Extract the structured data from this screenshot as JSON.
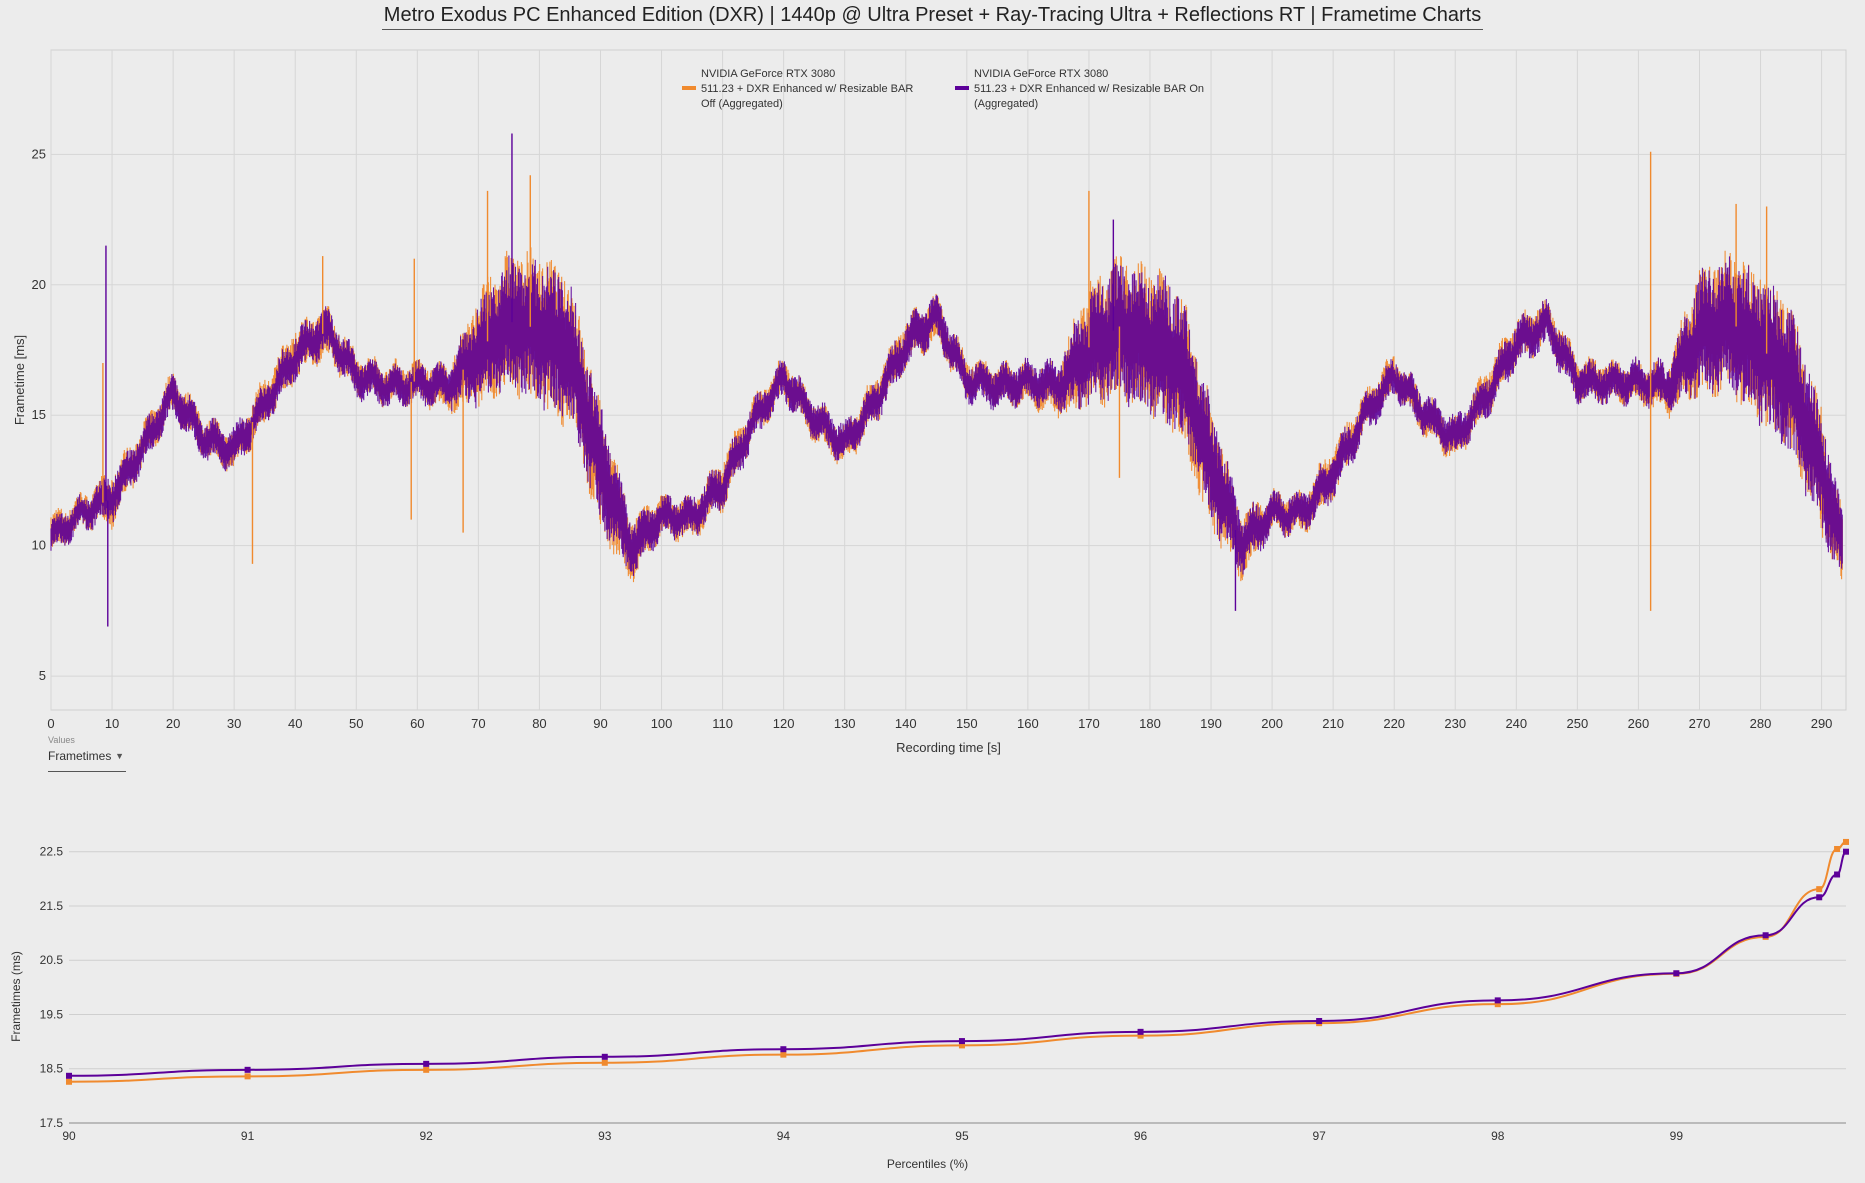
{
  "title": "Metro Exodus PC Enhanced Edition (DXR) | 1440p @ Ultra Preset + Ray-Tracing Ultra + Reflections RT | Frametime Charts",
  "colors": {
    "series_off": "#f08a2e",
    "series_on": "#5c0099",
    "grid": "#d6d6d6",
    "background": "#ececec"
  },
  "values_selector": {
    "caption": "Values",
    "selected": "Frametimes"
  },
  "chart_data": [
    {
      "type": "line",
      "title": "",
      "xlabel": "Recording time [s]",
      "ylabel": "Frametime [ms]",
      "xlim": [
        0,
        294
      ],
      "ylim": [
        3.7,
        29
      ],
      "x_ticks": [
        0,
        10,
        20,
        30,
        40,
        50,
        60,
        70,
        80,
        90,
        100,
        110,
        120,
        130,
        140,
        150,
        160,
        170,
        180,
        190,
        200,
        210,
        220,
        230,
        240,
        250,
        260,
        270,
        280,
        290
      ],
      "y_ticks": [
        5,
        10,
        15,
        20,
        25
      ],
      "grid": true,
      "legend_position": "top-center",
      "legend": [
        {
          "series": "off",
          "lines": [
            "NVIDIA GeForce RTX 3080",
            "511.23 + DXR Enhanced w/ Resizable BAR",
            "Off (Aggregated)"
          ]
        },
        {
          "series": "on",
          "lines": [
            "NVIDIA GeForce RTX 3080",
            "511.23 + DXR Enhanced w/ Resizable BAR On",
            "(Aggregated)"
          ]
        }
      ],
      "series": [
        {
          "name": "NVIDIA GeForce RTX 3080 511.23 + DXR Enhanced w/ Resizable BAR Off (Aggregated)",
          "key": "off",
          "x": [
            0,
            5,
            10,
            15,
            20,
            25,
            30,
            35,
            40,
            45,
            50,
            55,
            60,
            65,
            70,
            75,
            80,
            85,
            90,
            95,
            100,
            105,
            110,
            115,
            120,
            125,
            130,
            135,
            140,
            145,
            150,
            155,
            160,
            165,
            170,
            175,
            180,
            185,
            190,
            195,
            200,
            205,
            210,
            215,
            220,
            225,
            230,
            235,
            240,
            245,
            250,
            255,
            260,
            265,
            270,
            275,
            280,
            285,
            290,
            294
          ],
          "mean": [
            10.4,
            11.3,
            11.8,
            13.8,
            15.9,
            14.2,
            13.6,
            15.5,
            17.4,
            18.2,
            16.6,
            16.2,
            16.3,
            16.0,
            17.5,
            18.6,
            18.3,
            17.4,
            13.0,
            9.8,
            11.2,
            11.0,
            12.4,
            14.8,
            16.5,
            14.8,
            13.8,
            15.6,
            17.8,
            18.7,
            16.4,
            16.2,
            16.2,
            16.0,
            17.6,
            18.4,
            17.9,
            17.0,
            13.0,
            10.0,
            11.3,
            11.2,
            12.8,
            15.0,
            16.6,
            15.0,
            14.0,
            15.8,
            17.8,
            18.6,
            16.4,
            16.3,
            16.2,
            16.0,
            18.2,
            18.6,
            17.6,
            16.4,
            12.8,
            9.2
          ],
          "spread": [
            0.6,
            0.5,
            0.8,
            0.6,
            0.6,
            0.6,
            0.6,
            0.7,
            0.8,
            0.8,
            0.6,
            0.6,
            0.6,
            0.7,
            1.8,
            2.2,
            2.4,
            2.4,
            2.0,
            1.0,
            0.6,
            0.6,
            0.8,
            0.6,
            0.6,
            0.6,
            0.6,
            0.7,
            0.7,
            0.7,
            0.6,
            0.6,
            0.6,
            0.8,
            2.0,
            2.2,
            2.4,
            2.4,
            2.0,
            1.0,
            0.6,
            0.6,
            0.8,
            0.6,
            0.6,
            0.6,
            0.6,
            0.7,
            0.7,
            0.7,
            0.6,
            0.6,
            0.6,
            0.8,
            2.0,
            2.2,
            2.4,
            2.4,
            2.0,
            1.0
          ]
        },
        {
          "name": "NVIDIA GeForce RTX 3080 511.23 + DXR Enhanced w/ Resizable BAR On (Aggregated)",
          "key": "on",
          "x": [
            0,
            5,
            10,
            15,
            20,
            25,
            30,
            35,
            40,
            45,
            50,
            55,
            60,
            65,
            70,
            75,
            80,
            85,
            90,
            95,
            100,
            105,
            110,
            115,
            120,
            125,
            130,
            135,
            140,
            145,
            150,
            155,
            160,
            165,
            170,
            175,
            180,
            185,
            190,
            195,
            200,
            205,
            210,
            215,
            220,
            225,
            230,
            235,
            240,
            245,
            250,
            255,
            260,
            265,
            270,
            275,
            280,
            285,
            290,
            294
          ],
          "mean": [
            10.3,
            11.2,
            11.9,
            13.7,
            15.8,
            14.1,
            13.7,
            15.4,
            17.3,
            18.3,
            16.5,
            16.1,
            16.2,
            16.1,
            17.4,
            18.5,
            18.2,
            17.3,
            13.1,
            9.9,
            11.1,
            11.1,
            12.3,
            14.7,
            16.4,
            14.9,
            13.9,
            15.5,
            17.7,
            18.8,
            16.3,
            16.1,
            16.3,
            16.1,
            17.5,
            18.3,
            17.8,
            17.1,
            13.1,
            10.1,
            11.2,
            11.3,
            12.7,
            14.9,
            16.5,
            15.1,
            14.1,
            15.7,
            17.7,
            18.5,
            16.3,
            16.2,
            16.3,
            16.1,
            18.1,
            18.5,
            17.5,
            16.3,
            12.9,
            9.3
          ],
          "spread": [
            0.5,
            0.5,
            0.7,
            0.6,
            0.6,
            0.6,
            0.6,
            0.6,
            0.7,
            0.7,
            0.6,
            0.6,
            0.6,
            0.6,
            1.6,
            2.0,
            2.3,
            2.3,
            1.9,
            0.9,
            0.6,
            0.6,
            0.7,
            0.6,
            0.6,
            0.6,
            0.6,
            0.6,
            0.7,
            0.7,
            0.6,
            0.6,
            0.6,
            0.7,
            1.8,
            2.1,
            2.3,
            2.3,
            1.9,
            0.9,
            0.6,
            0.6,
            0.7,
            0.6,
            0.6,
            0.6,
            0.6,
            0.6,
            0.7,
            0.7,
            0.6,
            0.6,
            0.6,
            0.7,
            1.9,
            2.1,
            2.3,
            2.3,
            1.9,
            0.9
          ]
        }
      ],
      "spikes": [
        {
          "series": "on",
          "x": 9,
          "y": 21.5
        },
        {
          "series": "on",
          "x": 9.3,
          "y": 6.9
        },
        {
          "series": "off",
          "x": 8.5,
          "y": 17
        },
        {
          "series": "off",
          "x": 33,
          "y": 9.3
        },
        {
          "series": "off",
          "x": 44.5,
          "y": 21.1
        },
        {
          "series": "off",
          "x": 59.5,
          "y": 21
        },
        {
          "series": "off",
          "x": 59,
          "y": 11
        },
        {
          "series": "off",
          "x": 67.5,
          "y": 10.5
        },
        {
          "series": "off",
          "x": 71.5,
          "y": 23.6
        },
        {
          "series": "on",
          "x": 75.5,
          "y": 25.8
        },
        {
          "series": "off",
          "x": 78.5,
          "y": 24.2
        },
        {
          "series": "off",
          "x": 170,
          "y": 23.6
        },
        {
          "series": "on",
          "x": 174,
          "y": 22.5
        },
        {
          "series": "off",
          "x": 175,
          "y": 12.6
        },
        {
          "series": "off",
          "x": 262,
          "y": 25.1
        },
        {
          "series": "off",
          "x": 262,
          "y": 7.5
        },
        {
          "series": "off",
          "x": 276,
          "y": 23.1
        },
        {
          "series": "off",
          "x": 281,
          "y": 23.0
        },
        {
          "series": "on",
          "x": 194,
          "y": 7.5
        }
      ]
    },
    {
      "type": "line",
      "title": "",
      "xlabel": "Percentiles (%)",
      "ylabel": "Frametimes (ms)",
      "xlim": [
        90,
        99.95
      ],
      "ylim": [
        17.5,
        22.9
      ],
      "x_ticks": [
        90,
        91,
        92,
        93,
        94,
        95,
        96,
        97,
        98,
        99
      ],
      "y_ticks": [
        17.5,
        18.5,
        19.5,
        20.5,
        21.5,
        22.5
      ],
      "grid": true,
      "series": [
        {
          "key": "off",
          "x": [
            90,
            91,
            92,
            93,
            94,
            95,
            96,
            97,
            98,
            99,
            99.5,
            99.8,
            99.9,
            99.95
          ],
          "y": [
            18.26,
            18.36,
            18.48,
            18.61,
            18.76,
            18.93,
            19.11,
            19.34,
            19.69,
            20.25,
            20.93,
            21.81,
            22.55,
            22.68
          ]
        },
        {
          "key": "on",
          "x": [
            90,
            91,
            92,
            93,
            94,
            95,
            96,
            97,
            98,
            99,
            99.5,
            99.8,
            99.9,
            99.95
          ],
          "y": [
            18.37,
            18.48,
            18.59,
            18.72,
            18.86,
            19.01,
            19.18,
            19.38,
            19.76,
            20.26,
            20.96,
            21.66,
            22.08,
            22.5
          ]
        }
      ]
    }
  ]
}
